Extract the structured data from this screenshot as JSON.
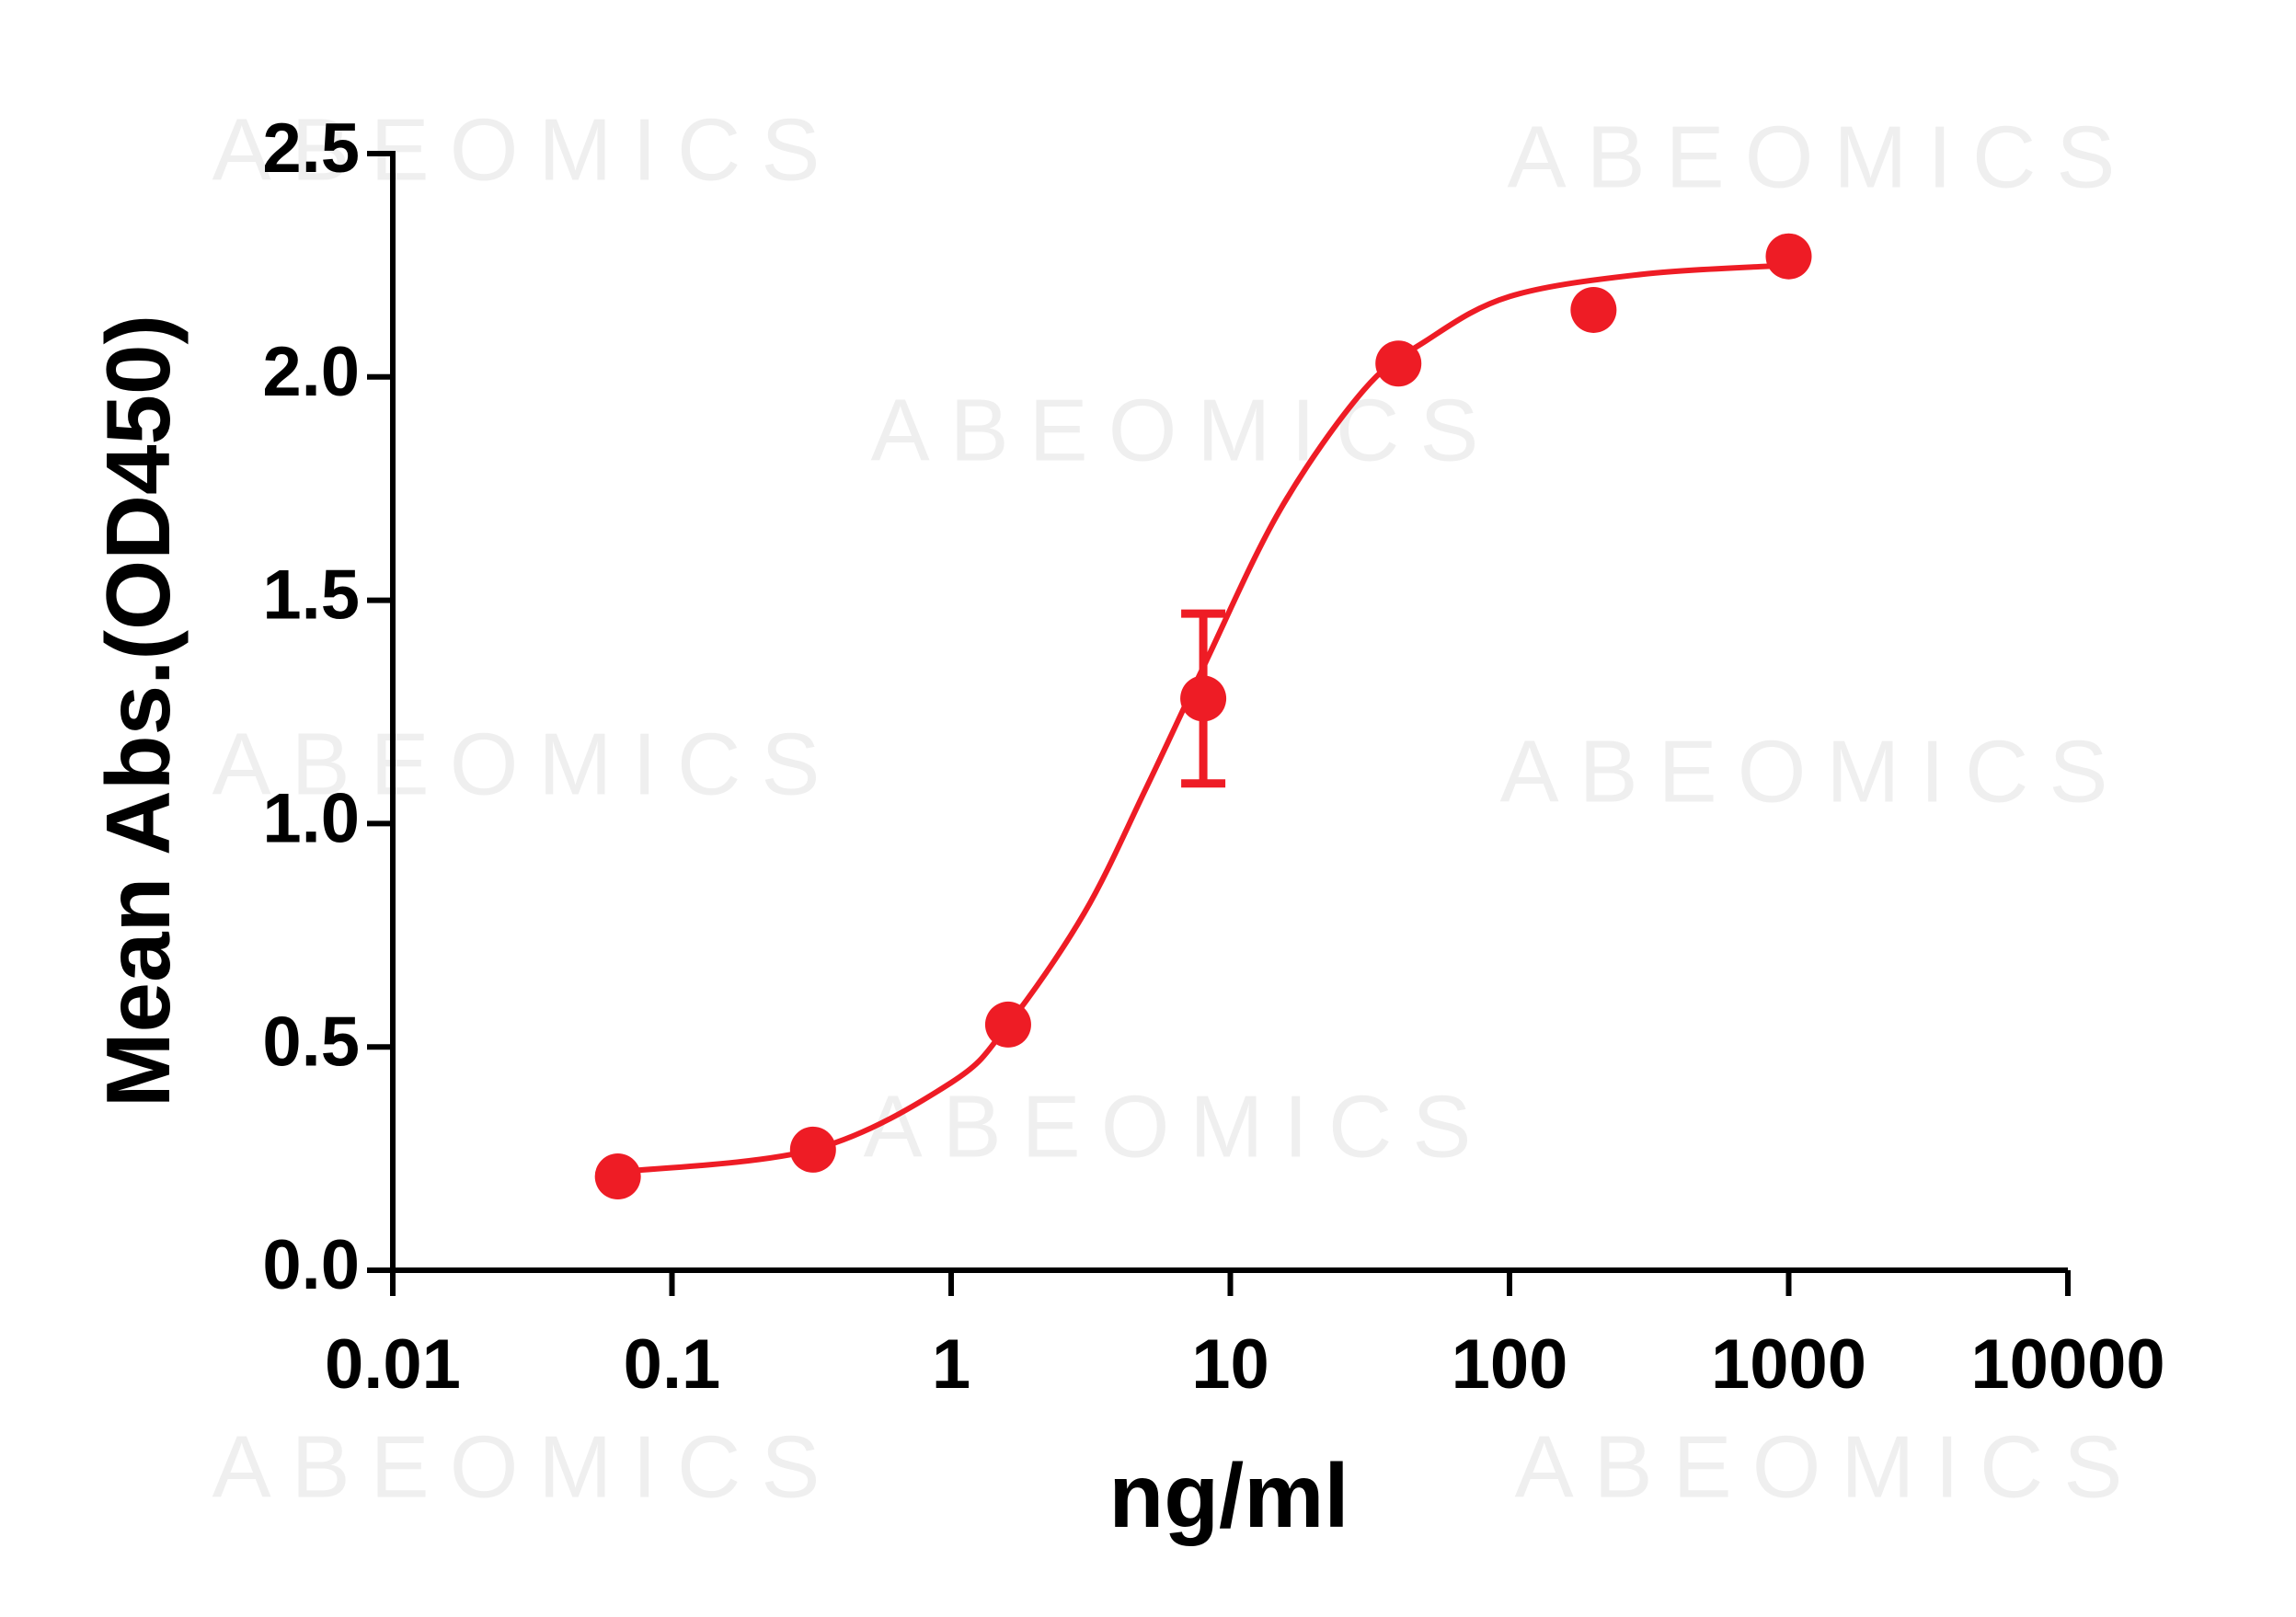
{
  "chart_data": {
    "type": "scatter",
    "watermark": "ABEOMICS",
    "xlabel": "ng/ml",
    "ylabel": "Mean Abs.(OD450)",
    "xscale": "log",
    "color": "#ee1c25",
    "x": [
      0.064,
      0.32,
      1.6,
      8,
      40,
      200,
      1000
    ],
    "values": [
      0.21,
      0.27,
      0.55,
      1.28,
      2.03,
      2.15,
      2.27
    ],
    "errors": [
      null,
      null,
      null,
      0.19,
      null,
      null,
      null
    ],
    "fit": {
      "x": [
        0.064,
        0.32,
        1,
        1.6,
        3,
        5,
        8,
        15,
        30,
        50,
        100,
        300,
        1000
      ],
      "values": [
        0.22,
        0.27,
        0.42,
        0.55,
        0.8,
        1.08,
        1.35,
        1.7,
        1.97,
        2.08,
        2.18,
        2.23,
        2.25
      ]
    },
    "xlim": [
      0.01,
      10000
    ],
    "xticks": [
      0.01,
      0.1,
      1,
      10,
      100,
      1000,
      10000
    ],
    "ylim": [
      0,
      2.5
    ],
    "yticks": [
      {
        "value": 0,
        "label": "0.0"
      },
      0.5,
      {
        "value": 1,
        "label": "1.0"
      },
      1.5,
      {
        "value": 2,
        "label": "2.0"
      },
      2.5
    ]
  }
}
